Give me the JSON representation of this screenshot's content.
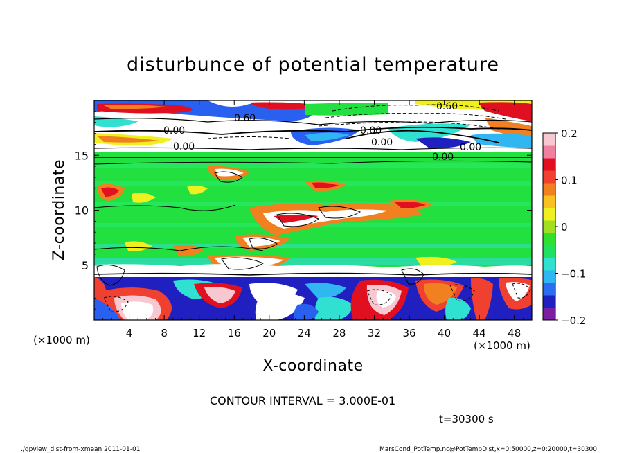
{
  "chart_data": {
    "type": "heatmap",
    "title": "disturbunce of potential temperature",
    "xlabel": "X-coordinate",
    "ylabel": "Z-coordinate",
    "x_unit": "(×1000 m)",
    "y_unit": "(×1000 m)",
    "xlim": [
      0,
      50
    ],
    "ylim": [
      0,
      20
    ],
    "x_ticks": [
      4,
      8,
      12,
      16,
      20,
      24,
      28,
      32,
      36,
      40,
      44,
      48
    ],
    "y_ticks": [
      5,
      10,
      15
    ],
    "colorbar": {
      "range": [
        -0.2,
        0.2
      ],
      "tick_values": [
        0.2,
        0.1,
        0,
        -0.1,
        -0.2
      ],
      "tick_labels": [
        "0.2",
        "0.1",
        "0",
        "−0.1",
        "−0.2"
      ],
      "colors": [
        "#7a1fa2",
        "#2020c0",
        "#2a6df0",
        "#30b6f0",
        "#30e0d0",
        "#20e060",
        "#30e030",
        "#a0e020",
        "#f0f020",
        "#f8c020",
        "#f08020",
        "#f04030",
        "#e01020",
        "#f080a0",
        "#f8c8d0"
      ]
    },
    "contour_labels": [
      "0.60",
      "0.60",
      "0.00",
      "0.00",
      "0.00",
      "0.00",
      "0.00",
      "0.00"
    ],
    "contour_interval_text": "CONTOUR INTERVAL = 3.000E-01",
    "time_text": "t=30300 s"
  },
  "footer": {
    "left": "./gpview_dist-from-xmean  2011-01-01",
    "right": "MarsCond_PotTemp.nc@PotTempDist,x=0:50000,z=0:20000,t=30300"
  }
}
